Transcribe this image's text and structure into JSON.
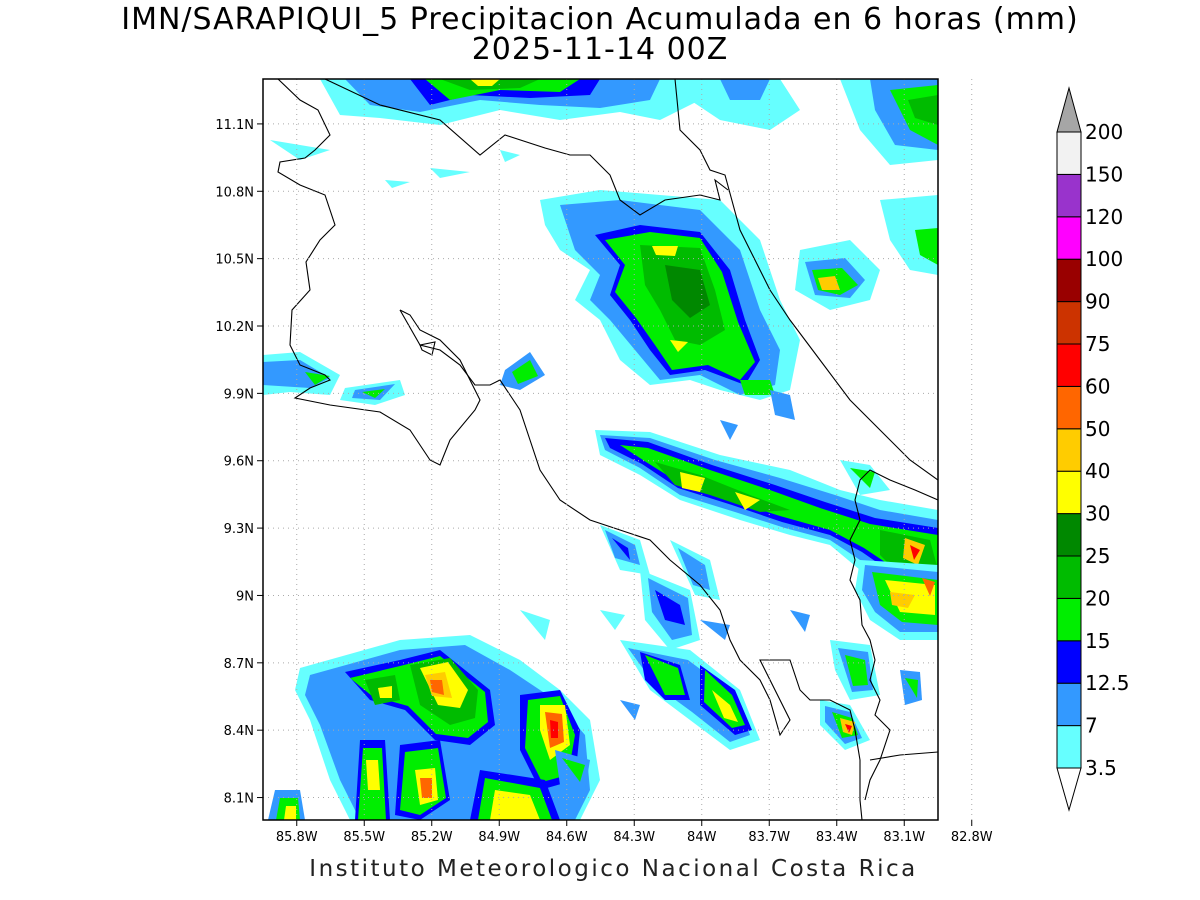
{
  "header": {
    "title_line1": "IMN/SARAPIQUI_5 Precipitacion Acumulada en 6 horas (mm)",
    "title_line2": "2025-11-14 00Z"
  },
  "footer": {
    "credit": "Instituto Meteorologico Nacional Costa Rica"
  },
  "map": {
    "lat_ticks": [
      "11.1N",
      "10.8N",
      "10.5N",
      "10.2N",
      "9.9N",
      "9.6N",
      "9.3N",
      "9N",
      "8.7N",
      "8.4N",
      "8.1N"
    ],
    "lon_ticks": [
      "85.8W",
      "85.5W",
      "85.2W",
      "84.9W",
      "84.6W",
      "84.3W",
      "84W",
      "83.7W",
      "83.4W",
      "83.1W",
      "82.8W"
    ],
    "lat_range": [
      8.0,
      11.3
    ],
    "lon_range": [
      -85.95,
      -82.95
    ],
    "grid": true
  },
  "colorbar": {
    "levels": [
      "3.5",
      "7",
      "12.5",
      "15",
      "20",
      "25",
      "30",
      "40",
      "50",
      "60",
      "75",
      "90",
      "100",
      "120",
      "150",
      "200"
    ],
    "colors": [
      "#ffffff",
      "#66ffff",
      "#3399ff",
      "#0000ff",
      "#00ee00",
      "#00bb00",
      "#008800",
      "#ffff00",
      "#ffcc00",
      "#ff6600",
      "#ff0000",
      "#cc3300",
      "#990000",
      "#ff00ff",
      "#9933cc",
      "#f2f2f2",
      "#a6a6a6"
    ]
  }
}
